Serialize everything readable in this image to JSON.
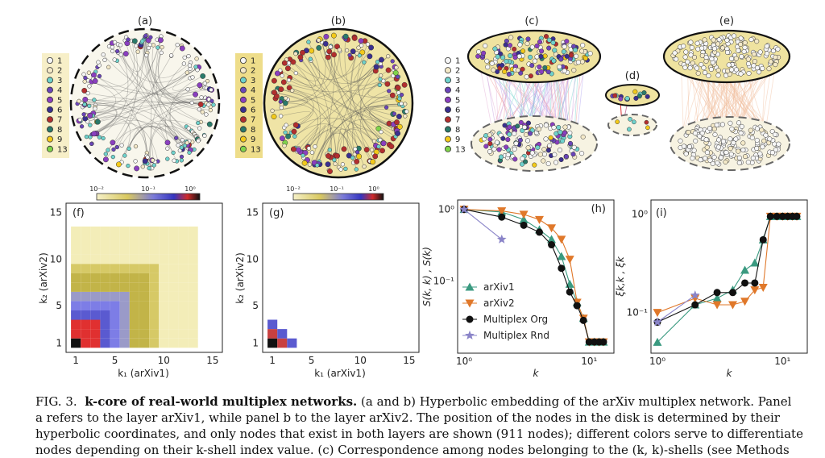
{
  "panels": {
    "a": "(a)",
    "b": "(b)",
    "c": "(c)",
    "d": "(d)",
    "e": "(e)",
    "f": "(f)",
    "g": "(g)",
    "h": "(h)",
    "i": "(i)"
  },
  "legend_values": [
    "1",
    "2",
    "3",
    "4",
    "5",
    "6",
    "7",
    "8",
    "9",
    "13"
  ],
  "legend_colors": [
    "#f6f6f6",
    "#f4e9c8",
    "#6fd2cc",
    "#6a45b8",
    "#8a3fbf",
    "#3a2f8f",
    "#b22e2e",
    "#2a7a6a",
    "#f2c91a",
    "#7fd34a"
  ],
  "colorbar": {
    "low": "10⁻²",
    "mid": "10⁻¹",
    "high": "10⁰"
  },
  "heatmap_axes": {
    "f": {
      "xlabel": "k₁ (arXiv1)",
      "ylabel": "k₂ (arXiv2)"
    },
    "g": {
      "xlabel": "k₁ (arXiv1)",
      "ylabel": "k₂ (arXiv2)"
    },
    "xticks": [
      "1",
      "5",
      "10",
      "15"
    ],
    "yticks": [
      "15",
      "10",
      "5",
      "1"
    ]
  },
  "chart_data": [
    {
      "type": "line",
      "id": "h",
      "xlabel": "k",
      "ylabel": "S(k, k) , S(k)",
      "xticks": [
        "10⁰",
        "10¹"
      ],
      "yticks": [
        "10⁰",
        "10⁻¹"
      ],
      "xlim": [
        1,
        14
      ],
      "ylim": [
        0.012,
        1.1
      ],
      "series": [
        {
          "name": "arXiv1",
          "x": [
            1,
            2,
            3,
            4,
            5,
            6,
            7,
            8,
            9,
            10,
            11,
            12,
            13
          ],
          "values": [
            1.0,
            0.92,
            0.72,
            0.52,
            0.38,
            0.22,
            0.09,
            0.05,
            0.03,
            0.014,
            0.014,
            0.014,
            0.014
          ]
        },
        {
          "name": "arXiv2",
          "x": [
            1,
            2,
            3,
            4,
            5,
            6,
            7,
            8,
            9,
            10,
            11,
            12,
            13
          ],
          "values": [
            1.0,
            0.95,
            0.85,
            0.72,
            0.55,
            0.38,
            0.2,
            0.05,
            0.03,
            0.014,
            0.014,
            0.014,
            0.014
          ]
        },
        {
          "name": "Multiplex Org",
          "x": [
            1,
            2,
            3,
            4,
            5,
            6,
            7,
            8,
            9,
            10,
            11,
            12,
            13
          ],
          "values": [
            1.0,
            0.78,
            0.6,
            0.48,
            0.32,
            0.15,
            0.07,
            0.045,
            0.028,
            0.014,
            0.014,
            0.014,
            0.014
          ]
        },
        {
          "name": "Multiplex Rnd",
          "x": [
            1,
            2
          ],
          "values": [
            1.0,
            0.38
          ]
        }
      ]
    },
    {
      "type": "line",
      "id": "i",
      "xlabel": "k",
      "ylabel": "ξk,k , ξk",
      "xticks": [
        "10⁰",
        "10¹"
      ],
      "yticks": [
        "10⁰",
        "10⁻¹"
      ],
      "xlim": [
        1,
        14
      ],
      "ylim": [
        0.045,
        1.2
      ],
      "series": [
        {
          "name": "arXiv1",
          "x": [
            1,
            2,
            3,
            4,
            5,
            6,
            7,
            8,
            9,
            10,
            11,
            12,
            13
          ],
          "values": [
            0.05,
            0.12,
            0.14,
            0.17,
            0.27,
            0.32,
            0.55,
            0.95,
            0.95,
            0.95,
            0.95,
            0.95,
            0.95
          ]
        },
        {
          "name": "arXiv2",
          "x": [
            1,
            2,
            3,
            4,
            5,
            6,
            7,
            8,
            9,
            10,
            11,
            12,
            13
          ],
          "values": [
            0.1,
            0.14,
            0.12,
            0.12,
            0.13,
            0.17,
            0.18,
            0.95,
            0.95,
            0.95,
            0.95,
            0.95,
            0.95
          ]
        },
        {
          "name": "Multiplex Org",
          "x": [
            1,
            2,
            3,
            4,
            5,
            6,
            7,
            8,
            9,
            10,
            11,
            12,
            13
          ],
          "values": [
            0.08,
            0.12,
            0.16,
            0.16,
            0.2,
            0.2,
            0.55,
            0.95,
            0.95,
            0.95,
            0.95,
            0.95,
            0.95
          ]
        },
        {
          "name": "Multiplex Rnd",
          "x": [
            1,
            2
          ],
          "values": [
            0.08,
            0.15
          ]
        }
      ]
    }
  ],
  "caption": {
    "fig": "FIG. 3.",
    "title": "k-core of real-world multiplex networks.",
    "line1_rest": "(a and b) Hyperbolic embedding of the arXiv multiplex network. Panel",
    "line2": "a refers to the layer arXiv1, while panel b to the layer arXiv2. The position of the nodes in the disk is determined by their",
    "line3": "hyperbolic coordinates, and only nodes that exist in both layers are shown (911 nodes); different colors serve to differentiate",
    "line4": "nodes depending on their k-shell index value. (c) Correspondence among nodes belonging to the (k, k)-shells (see Methods"
  }
}
